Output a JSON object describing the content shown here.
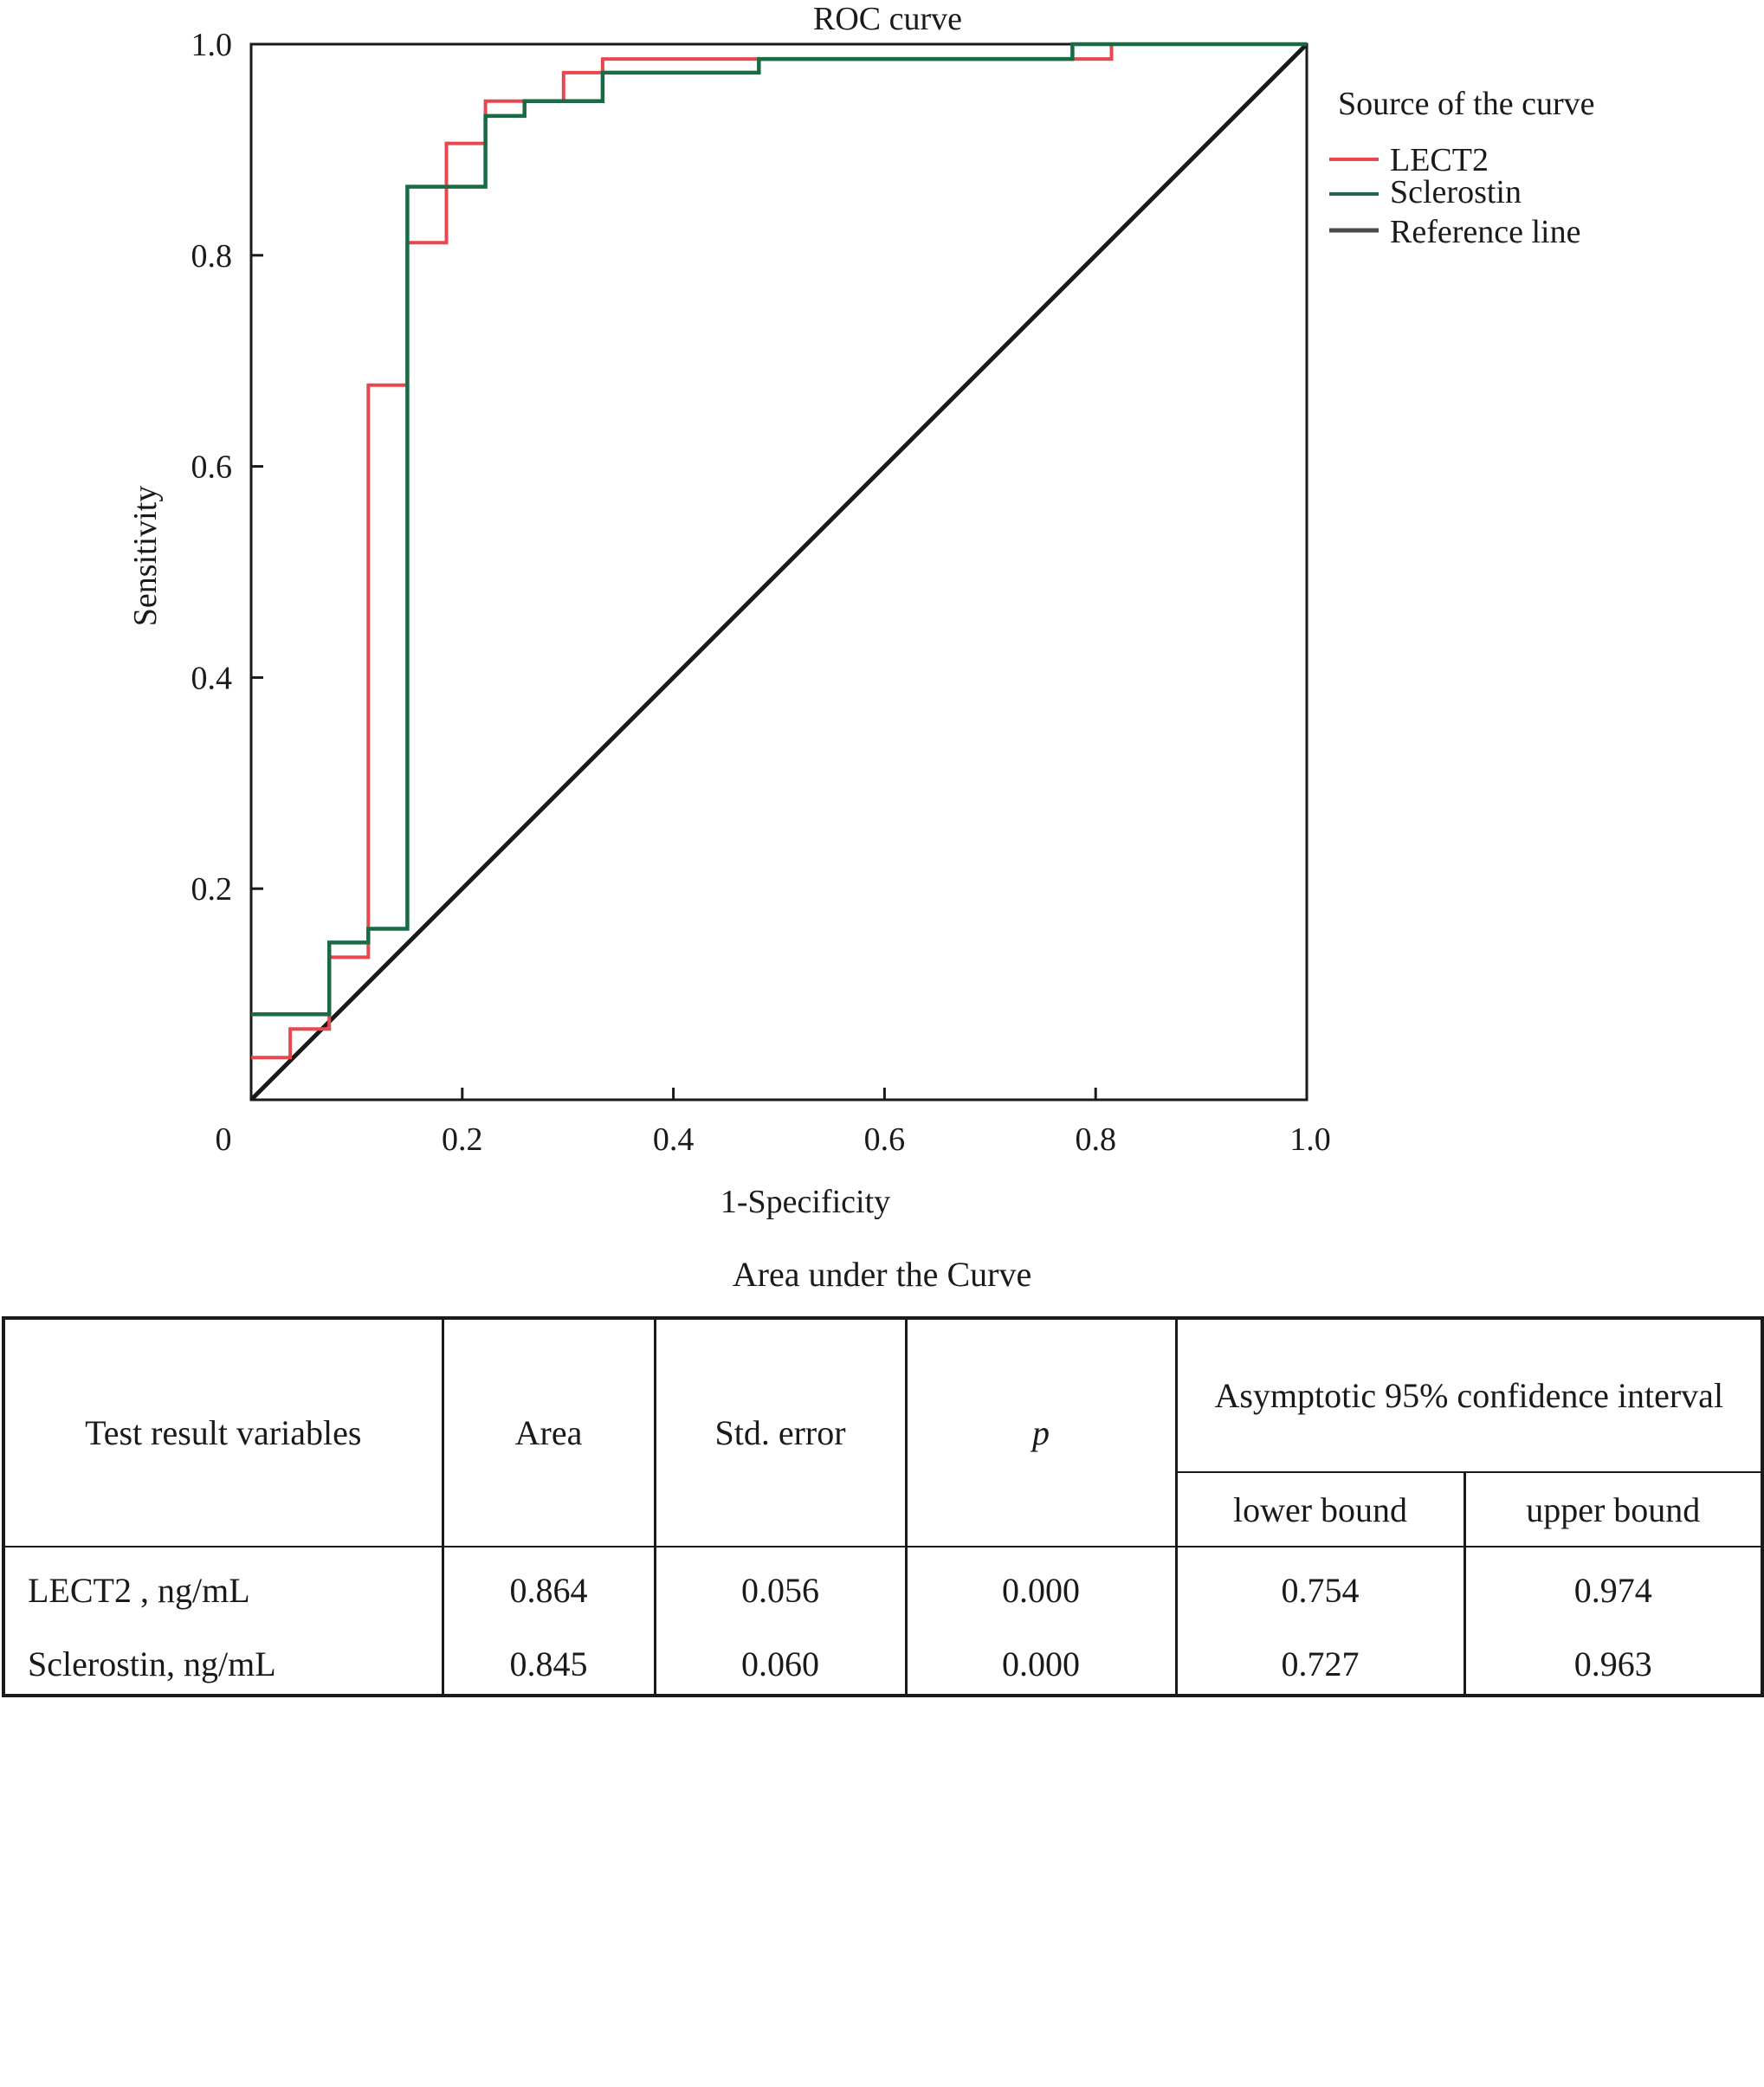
{
  "chart_data": {
    "type": "line",
    "title": "ROC curve",
    "xlabel": "1-Specificity",
    "ylabel": "Sensitivity",
    "xlim": [
      0,
      1
    ],
    "ylim": [
      0,
      1
    ],
    "x_ticks": [
      "0",
      "0.2",
      "0.4",
      "0.6",
      "0.8",
      "1.0"
    ],
    "y_ticks": [
      "0.2",
      "0.4",
      "0.6",
      "0.8",
      "1.0"
    ],
    "x_tick_values": [
      0,
      0.2,
      0.4,
      0.6,
      0.8,
      1.0
    ],
    "y_tick_values": [
      0.2,
      0.4,
      0.6,
      0.8,
      1.0
    ],
    "grid": false,
    "legend_title": "Source of the curve",
    "legend_position": "right",
    "series": [
      {
        "name": "LECT2",
        "color": "#e8474f",
        "points": [
          [
            0,
            0.04
          ],
          [
            0.037,
            0.04
          ],
          [
            0.037,
            0.067
          ],
          [
            0.074,
            0.067
          ],
          [
            0.074,
            0.135
          ],
          [
            0.111,
            0.135
          ],
          [
            0.111,
            0.677
          ],
          [
            0.148,
            0.677
          ],
          [
            0.148,
            0.812
          ],
          [
            0.185,
            0.812
          ],
          [
            0.185,
            0.906
          ],
          [
            0.222,
            0.906
          ],
          [
            0.222,
            0.946
          ],
          [
            0.296,
            0.946
          ],
          [
            0.296,
            0.973
          ],
          [
            0.333,
            0.973
          ],
          [
            0.333,
            0.986
          ],
          [
            0.778,
            0.986
          ],
          [
            0.778,
            0.986
          ],
          [
            0.815,
            0.986
          ],
          [
            0.815,
            1.0
          ],
          [
            1.0,
            1.0
          ]
        ]
      },
      {
        "name": "Sclerostin",
        "color": "#1a6b45",
        "points": [
          [
            0,
            0.081
          ],
          [
            0.074,
            0.081
          ],
          [
            0.074,
            0.149
          ],
          [
            0.111,
            0.149
          ],
          [
            0.111,
            0.162
          ],
          [
            0.148,
            0.162
          ],
          [
            0.148,
            0.865
          ],
          [
            0.222,
            0.865
          ],
          [
            0.222,
            0.932
          ],
          [
            0.259,
            0.932
          ],
          [
            0.259,
            0.946
          ],
          [
            0.333,
            0.946
          ],
          [
            0.333,
            0.973
          ],
          [
            0.481,
            0.973
          ],
          [
            0.481,
            0.986
          ],
          [
            0.778,
            0.986
          ],
          [
            0.778,
            1.0
          ],
          [
            1.0,
            1.0
          ]
        ]
      },
      {
        "name": "Reference line",
        "color": "#1a1a1a",
        "points": [
          [
            0,
            0
          ],
          [
            1,
            1
          ]
        ]
      }
    ]
  },
  "table": {
    "title": "Area under the Curve",
    "headers": {
      "variables": "Test result variables",
      "area": "Area",
      "std_error": "Std. error",
      "p": "p",
      "ci": "Asymptotic 95% confidence interval",
      "lower": "lower bound",
      "upper": "upper bound"
    },
    "rows": [
      {
        "variable": "LECT2 , ng/mL",
        "area": "0.864",
        "std_error": "0.056",
        "p": "0.000",
        "lower": "0.754",
        "upper": "0.974"
      },
      {
        "variable": "Sclerostin, ng/mL",
        "area": "0.845",
        "std_error": "0.060",
        "p": "0.000",
        "lower": "0.727",
        "upper": "0.963"
      }
    ]
  }
}
